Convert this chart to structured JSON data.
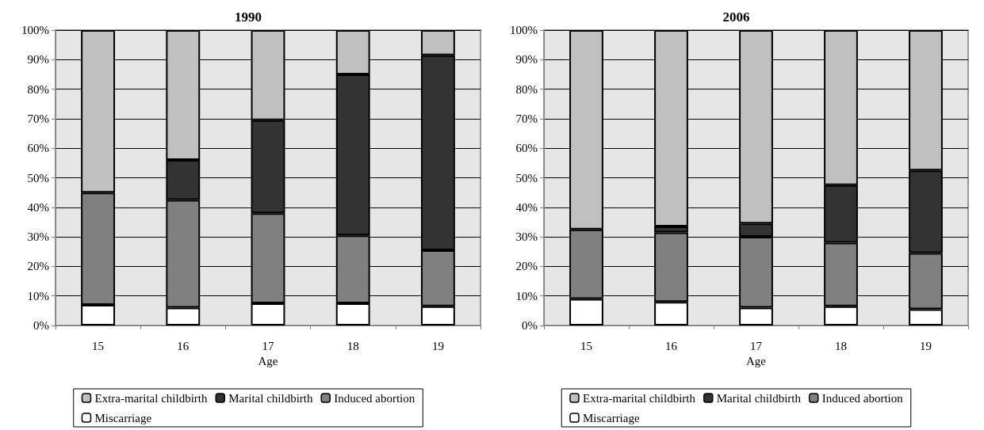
{
  "chart_data": [
    {
      "type": "bar",
      "title": "1990",
      "xlabel": "Age",
      "categories": [
        "15",
        "16",
        "17",
        "18",
        "19"
      ],
      "stacked": true,
      "ylim": [
        0,
        100
      ],
      "yticks": [
        {
          "value": 0,
          "label": "0%"
        },
        {
          "value": 10,
          "label": "10%"
        },
        {
          "value": 20,
          "label": "20%"
        },
        {
          "value": 30,
          "label": "30%"
        },
        {
          "value": 40,
          "label": "40%"
        },
        {
          "value": 50,
          "label": "50%"
        },
        {
          "value": 60,
          "label": "60%"
        },
        {
          "value": 70,
          "label": "70%"
        },
        {
          "value": 80,
          "label": "80%"
        },
        {
          "value": 90,
          "label": "90%"
        },
        {
          "value": 100,
          "label": "100%"
        }
      ],
      "grid": "y",
      "legend": "bottom",
      "series": [
        {
          "name": "Miscarriage",
          "color": "#ffffff",
          "values": [
            7,
            6,
            7.5,
            7.5,
            6.5
          ]
        },
        {
          "name": "Induced abortion",
          "color": "#808080",
          "values": [
            38,
            36.5,
            30.5,
            23,
            19
          ]
        },
        {
          "name": "Marital childbirth",
          "color": "#333333",
          "values": [
            0,
            13.5,
            31.5,
            54.5,
            66
          ]
        },
        {
          "name": "Extra-marital childbirth",
          "color": "#c0c0c0",
          "values": [
            55,
            44,
            30.5,
            15,
            8.5
          ]
        }
      ]
    },
    {
      "type": "bar",
      "title": "2006",
      "xlabel": "Age",
      "categories": [
        "15",
        "16",
        "17",
        "18",
        "19"
      ],
      "stacked": true,
      "ylim": [
        0,
        100
      ],
      "yticks": [
        {
          "value": 0,
          "label": "0%"
        },
        {
          "value": 10,
          "label": "10%"
        },
        {
          "value": 20,
          "label": "20%"
        },
        {
          "value": 30,
          "label": "30%"
        },
        {
          "value": 40,
          "label": "40%"
        },
        {
          "value": 50,
          "label": "50%"
        },
        {
          "value": 60,
          "label": "60%"
        },
        {
          "value": 70,
          "label": "70%"
        },
        {
          "value": 80,
          "label": "80%"
        },
        {
          "value": 90,
          "label": "90%"
        },
        {
          "value": 100,
          "label": "100%"
        }
      ],
      "grid": "y",
      "legend": "bottom",
      "series": [
        {
          "name": "Miscarriage",
          "color": "#ffffff",
          "values": [
            9,
            8,
            6,
            6.5,
            5.5
          ]
        },
        {
          "name": "Induced abortion",
          "color": "#808080",
          "values": [
            23.5,
            23.5,
            24,
            21.5,
            19
          ]
        },
        {
          "name": "Marital childbirth",
          "color": "#333333",
          "values": [
            0,
            2,
            4.5,
            19.5,
            28
          ]
        },
        {
          "name": "Extra-marital childbirth",
          "color": "#c0c0c0",
          "values": [
            67.5,
            66.5,
            65.5,
            52.5,
            47.5
          ]
        }
      ]
    }
  ]
}
